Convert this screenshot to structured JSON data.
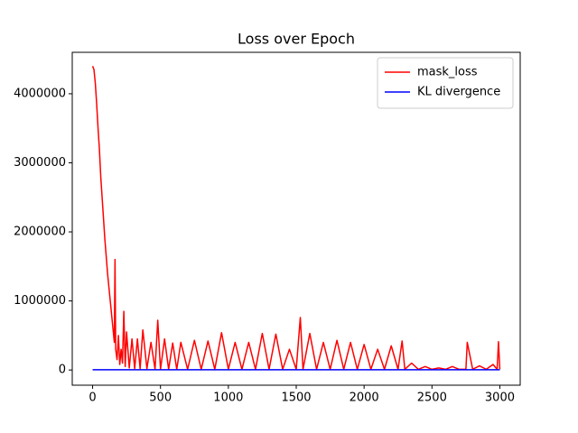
{
  "chart_data": {
    "type": "line",
    "title": "Loss over Epoch",
    "xlim": [
      -150,
      3150
    ],
    "ylim": [
      -220000,
      4600000
    ],
    "xticks": [
      0,
      500,
      1000,
      1500,
      2000,
      2500,
      3000
    ],
    "yticks": [
      0,
      1000000,
      2000000,
      3000000,
      4000000
    ],
    "legend": "upper right",
    "grid": false,
    "series": [
      {
        "name": "mask_loss",
        "color": "#ff0000",
        "x": [
          0,
          10,
          20,
          30,
          40,
          50,
          60,
          70,
          80,
          90,
          100,
          110,
          120,
          130,
          140,
          150,
          160,
          165,
          170,
          180,
          190,
          200,
          210,
          220,
          230,
          240,
          250,
          270,
          290,
          310,
          330,
          350,
          370,
          400,
          430,
          460,
          480,
          500,
          530,
          560,
          590,
          620,
          650,
          700,
          750,
          800,
          850,
          900,
          950,
          1000,
          1050,
          1100,
          1150,
          1200,
          1250,
          1300,
          1350,
          1400,
          1450,
          1500,
          1530,
          1550,
          1600,
          1650,
          1700,
          1750,
          1800,
          1850,
          1900,
          1950,
          2000,
          2050,
          2100,
          2150,
          2200,
          2250,
          2280,
          2300,
          2350,
          2400,
          2450,
          2500,
          2550,
          2600,
          2650,
          2700,
          2750,
          2760,
          2800,
          2850,
          2900,
          2950,
          2980,
          2990,
          3000
        ],
        "values": [
          4400000,
          4350000,
          4150000,
          3850000,
          3500000,
          3200000,
          2800000,
          2500000,
          2200000,
          1900000,
          1650000,
          1400000,
          1200000,
          1000000,
          800000,
          600000,
          400000,
          1600000,
          300000,
          150000,
          500000,
          80000,
          300000,
          100000,
          850000,
          50000,
          550000,
          30000,
          450000,
          20000,
          450000,
          20000,
          580000,
          20000,
          400000,
          10000,
          720000,
          10000,
          450000,
          10000,
          390000,
          10000,
          400000,
          10000,
          430000,
          10000,
          420000,
          10000,
          540000,
          10000,
          400000,
          10000,
          400000,
          10000,
          530000,
          10000,
          520000,
          10000,
          300000,
          10000,
          760000,
          10000,
          530000,
          10000,
          400000,
          10000,
          430000,
          10000,
          400000,
          10000,
          370000,
          10000,
          300000,
          10000,
          350000,
          10000,
          420000,
          10000,
          100000,
          10000,
          50000,
          10000,
          30000,
          10000,
          50000,
          10000,
          10000,
          400000,
          10000,
          60000,
          10000,
          80000,
          10000,
          410000,
          10000
        ]
      },
      {
        "name": "KL divergence",
        "color": "#0000ff",
        "x": [
          0,
          3000
        ],
        "values": [
          3000,
          3000
        ]
      }
    ]
  }
}
